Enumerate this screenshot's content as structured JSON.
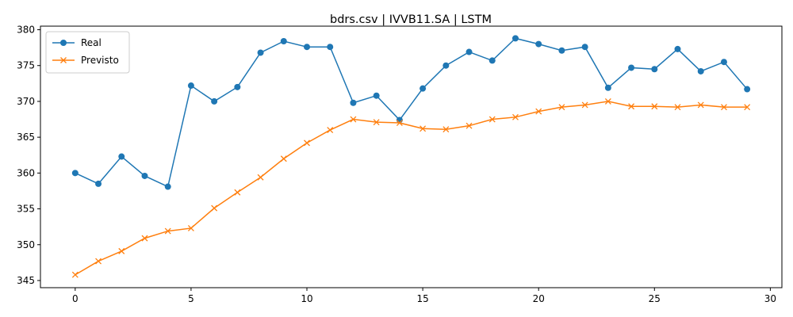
{
  "chart_data": {
    "type": "line",
    "title": "bdrs.csv | IVVB11.SA | LSTM",
    "xlabel": "",
    "ylabel": "",
    "x": [
      0,
      1,
      2,
      3,
      4,
      5,
      6,
      7,
      8,
      9,
      10,
      11,
      12,
      13,
      14,
      15,
      16,
      17,
      18,
      19,
      20,
      21,
      22,
      23,
      24,
      25,
      26,
      27,
      28,
      29
    ],
    "xlim": [
      -1.5,
      30.5
    ],
    "ylim": [
      344.0,
      380.5
    ],
    "xticks": [
      0,
      5,
      10,
      15,
      20,
      25,
      30
    ],
    "yticks": [
      345,
      350,
      355,
      360,
      365,
      370,
      375,
      380
    ],
    "grid": false,
    "legend_position": "top-left",
    "series": [
      {
        "name": "Real",
        "color": "#1f77b4",
        "marker": "circle",
        "values": [
          360.0,
          358.5,
          362.3,
          359.6,
          358.1,
          372.2,
          370.0,
          372.0,
          376.8,
          378.4,
          377.6,
          377.6,
          369.8,
          370.8,
          367.4,
          371.8,
          375.0,
          376.9,
          375.7,
          378.8,
          378.0,
          377.1,
          377.6,
          371.9,
          374.7,
          374.5,
          377.3,
          374.2,
          375.5,
          371.7
        ]
      },
      {
        "name": "Previsto",
        "color": "#ff7f0e",
        "marker": "x",
        "values": [
          345.8,
          347.7,
          349.1,
          350.9,
          351.9,
          352.3,
          355.1,
          357.3,
          359.4,
          362.0,
          364.2,
          366.0,
          367.5,
          367.1,
          367.0,
          366.2,
          366.1,
          366.6,
          367.5,
          367.8,
          368.6,
          369.2,
          369.5,
          370.0,
          369.3,
          369.3,
          369.2,
          369.5,
          369.2,
          369.2
        ]
      }
    ]
  }
}
